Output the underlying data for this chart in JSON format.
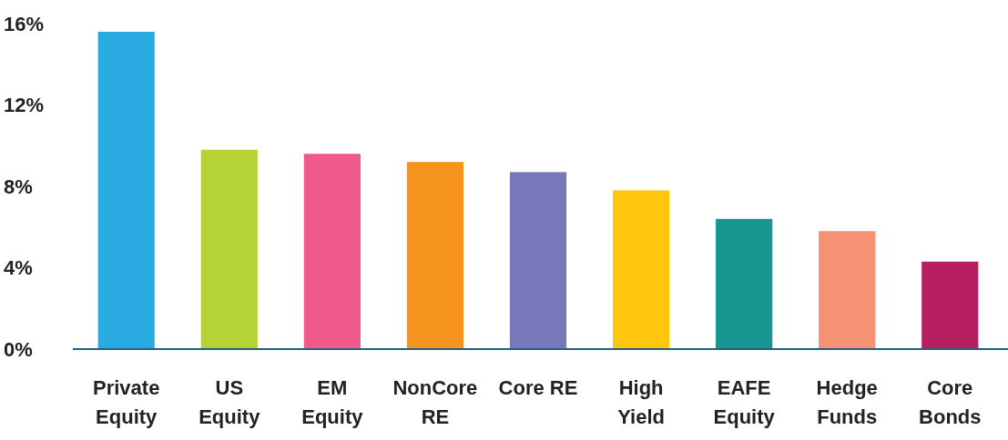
{
  "chart_data": {
    "type": "bar",
    "categories": [
      "Private Equity",
      "US Equity",
      "EM Equity",
      "NonCore RE",
      "Core RE",
      "High Yield",
      "EAFE Equity",
      "Hedge Funds",
      "Core Bonds"
    ],
    "values": [
      15.6,
      9.8,
      9.6,
      9.2,
      8.7,
      7.8,
      6.4,
      5.8,
      4.3
    ],
    "colors": [
      "#29abe2",
      "#b5d334",
      "#f05a8a",
      "#f7941d",
      "#7777b9",
      "#ffc60b",
      "#1a9692",
      "#f59273",
      "#b71f63"
    ],
    "ylim": [
      0,
      16
    ],
    "yticks": [
      {
        "value": 0,
        "label": "0%"
      },
      {
        "value": 4,
        "label": "4%"
      },
      {
        "value": 8,
        "label": "8%"
      },
      {
        "value": 12,
        "label": "12%"
      },
      {
        "value": 16,
        "label": "16%"
      }
    ],
    "grid": false
  }
}
